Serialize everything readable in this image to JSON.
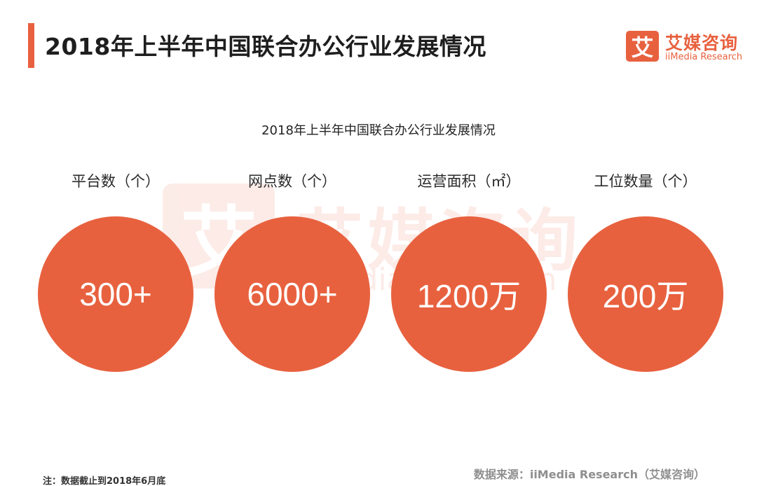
{
  "header": {
    "title": "2018年上半年中国联合办公行业发展情况"
  },
  "logo": {
    "mark": "艾",
    "name_cn": "艾媒咨询",
    "name_en": "iiMedia Research",
    "color": "#e8613f"
  },
  "watermark": {
    "mark": "艾",
    "name_cn": "艾媒咨询",
    "name_en": "iiMedia Research"
  },
  "main": {
    "subtitle": "2018年上半年中国联合办公行业发展情况",
    "accent_color": "#e8613f",
    "stats": [
      {
        "label": "平台数（个）",
        "value": "300+"
      },
      {
        "label": "网点数（个）",
        "value": "6000+"
      },
      {
        "label": "运营面积（㎡）",
        "value": "1200万"
      },
      {
        "label": "工位数量（个）",
        "value": "200万"
      }
    ]
  },
  "footer": {
    "note": "注：数据截止到2018年6月底",
    "source": "数据来源：iiMedia Research（艾媒咨询）"
  }
}
